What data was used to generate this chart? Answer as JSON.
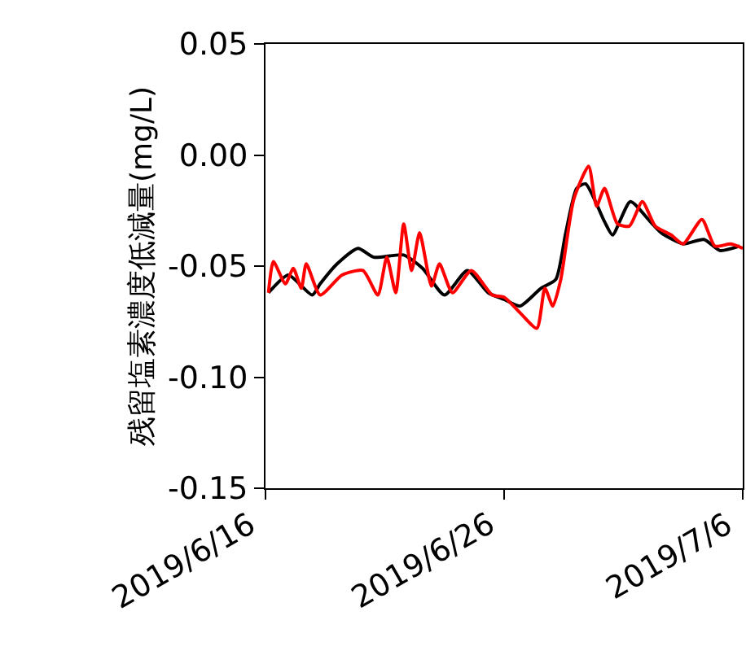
{
  "chart_data": {
    "type": "line",
    "ylabel": "残留塩素濃度低減量(mg/L)",
    "xlim": [
      "2019-06-16",
      "2019-07-06"
    ],
    "xticks": [
      {
        "value": "2019-06-16",
        "label": "2019/6/16"
      },
      {
        "value": "2019-06-26",
        "label": "2019/6/26"
      },
      {
        "value": "2019-07-06",
        "label": "2019/7/6"
      }
    ],
    "ylim": [
      -0.15,
      0.05
    ],
    "yticks": [
      {
        "value": -0.15,
        "label": "-0.15"
      },
      {
        "value": -0.1,
        "label": "-0.10"
      },
      {
        "value": -0.05,
        "label": "-0.05"
      },
      {
        "value": 0,
        "label": "0.00"
      },
      {
        "value": 0.05,
        "label": "0.05"
      }
    ],
    "marker": "none",
    "line_style": "solid",
    "series": [
      {
        "color": "#000000",
        "x": [
          "2019-06-16T03:00",
          "2019-06-16T23:00",
          "2019-06-17T23:00",
          "2019-06-18T07:00",
          "2019-06-19T00:00",
          "2019-06-19T21:00",
          "2019-06-20T13:00",
          "2019-06-21T19:00",
          "2019-06-22T14:00",
          "2019-06-23T12:00",
          "2019-06-24T11:00",
          "2019-06-25T08:00",
          "2019-06-26T00:00",
          "2019-06-26T16:00",
          "2019-06-27T13:00",
          "2019-06-28T04:00",
          "2019-06-28T14:00",
          "2019-06-29T01:00",
          "2019-06-29T10:00",
          "2019-06-30T05:00",
          "2019-06-30T13:00",
          "2019-07-01T07:00",
          "2019-07-02T03:00",
          "2019-07-02T14:00",
          "2019-07-03T12:00",
          "2019-07-04T09:00",
          "2019-07-05T01:00",
          "2019-07-05T21:00"
        ],
        "values": [
          -0.062,
          -0.054,
          -0.063,
          -0.058,
          -0.049,
          -0.042,
          -0.046,
          -0.045,
          -0.051,
          -0.063,
          -0.052,
          -0.062,
          -0.065,
          -0.068,
          -0.06,
          -0.056,
          -0.035,
          -0.015,
          -0.013,
          -0.03,
          -0.036,
          -0.021,
          -0.03,
          -0.035,
          -0.04,
          -0.038,
          -0.043,
          -0.041
        ]
      },
      {
        "color": "#ff0000",
        "x": [
          "2019-06-16T03:00",
          "2019-06-16T08:00",
          "2019-06-16T20:00",
          "2019-06-17T04:00",
          "2019-06-17T12:00",
          "2019-06-17T17:00",
          "2019-06-18T07:00",
          "2019-06-19T05:00",
          "2019-06-20T02:00",
          "2019-06-20T17:00",
          "2019-06-21T02:00",
          "2019-06-21T11:00",
          "2019-06-21T19:00",
          "2019-06-22T03:00",
          "2019-06-22T11:00",
          "2019-06-22T23:00",
          "2019-06-23T07:00",
          "2019-06-23T20:00",
          "2019-06-24T15:00",
          "2019-06-25T12:00",
          "2019-06-26T00:00",
          "2019-06-26T16:00",
          "2019-06-27T09:00",
          "2019-06-27T17:00",
          "2019-06-28T01:00",
          "2019-06-28T09:00",
          "2019-06-28T22:00",
          "2019-06-29T13:00",
          "2019-06-29T21:00",
          "2019-06-30T05:00",
          "2019-06-30T18:00",
          "2019-07-01T06:00",
          "2019-07-01T19:00",
          "2019-07-02T08:00",
          "2019-07-03T00:00",
          "2019-07-03T12:00",
          "2019-07-04T07:00",
          "2019-07-04T20:00",
          "2019-07-05T12:00",
          "2019-07-06T00:00"
        ],
        "values": [
          -0.062,
          -0.048,
          -0.058,
          -0.051,
          -0.06,
          -0.049,
          -0.063,
          -0.054,
          -0.052,
          -0.063,
          -0.046,
          -0.062,
          -0.031,
          -0.052,
          -0.035,
          -0.059,
          -0.049,
          -0.062,
          -0.052,
          -0.063,
          -0.064,
          -0.071,
          -0.078,
          -0.06,
          -0.068,
          -0.056,
          -0.02,
          -0.005,
          -0.023,
          -0.015,
          -0.031,
          -0.032,
          -0.021,
          -0.032,
          -0.036,
          -0.04,
          -0.029,
          -0.041,
          -0.04,
          -0.042
        ]
      }
    ]
  }
}
